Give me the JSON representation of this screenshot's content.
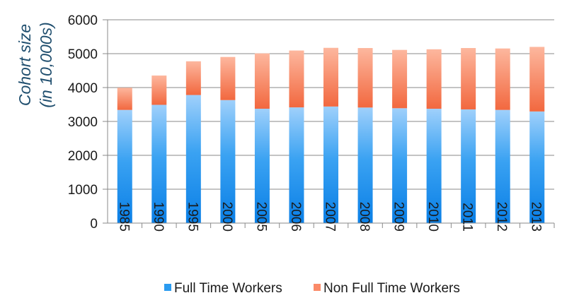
{
  "chart_data": {
    "type": "bar",
    "stacked": true,
    "categories": [
      "1985",
      "1990",
      "1995",
      "2000",
      "2005",
      "2006",
      "2007",
      "2008",
      "2009",
      "2010",
      "2011",
      "2012",
      "2013"
    ],
    "series": [
      {
        "name": "Full Time Workers",
        "values": [
          3340,
          3490,
          3780,
          3630,
          3375,
          3415,
          3440,
          3410,
          3390,
          3374,
          3355,
          3340,
          3294
        ],
        "color": "#2a9bf0"
      },
      {
        "name": "Non Full Time Workers",
        "values": [
          655,
          865,
          995,
          1273,
          1633,
          1678,
          1732,
          1756,
          1721,
          1755,
          1811,
          1813,
          1906
        ],
        "color": "#fb8a68"
      }
    ],
    "ylabel_line1": "Cohort size",
    "ylabel_line2": "(in 10,000s)",
    "ylim": [
      0,
      6000
    ],
    "yticks": [
      "0",
      "1000",
      "2000",
      "3000",
      "4000",
      "5000",
      "6000"
    ],
    "grid": true,
    "legend_position": "bottom"
  }
}
